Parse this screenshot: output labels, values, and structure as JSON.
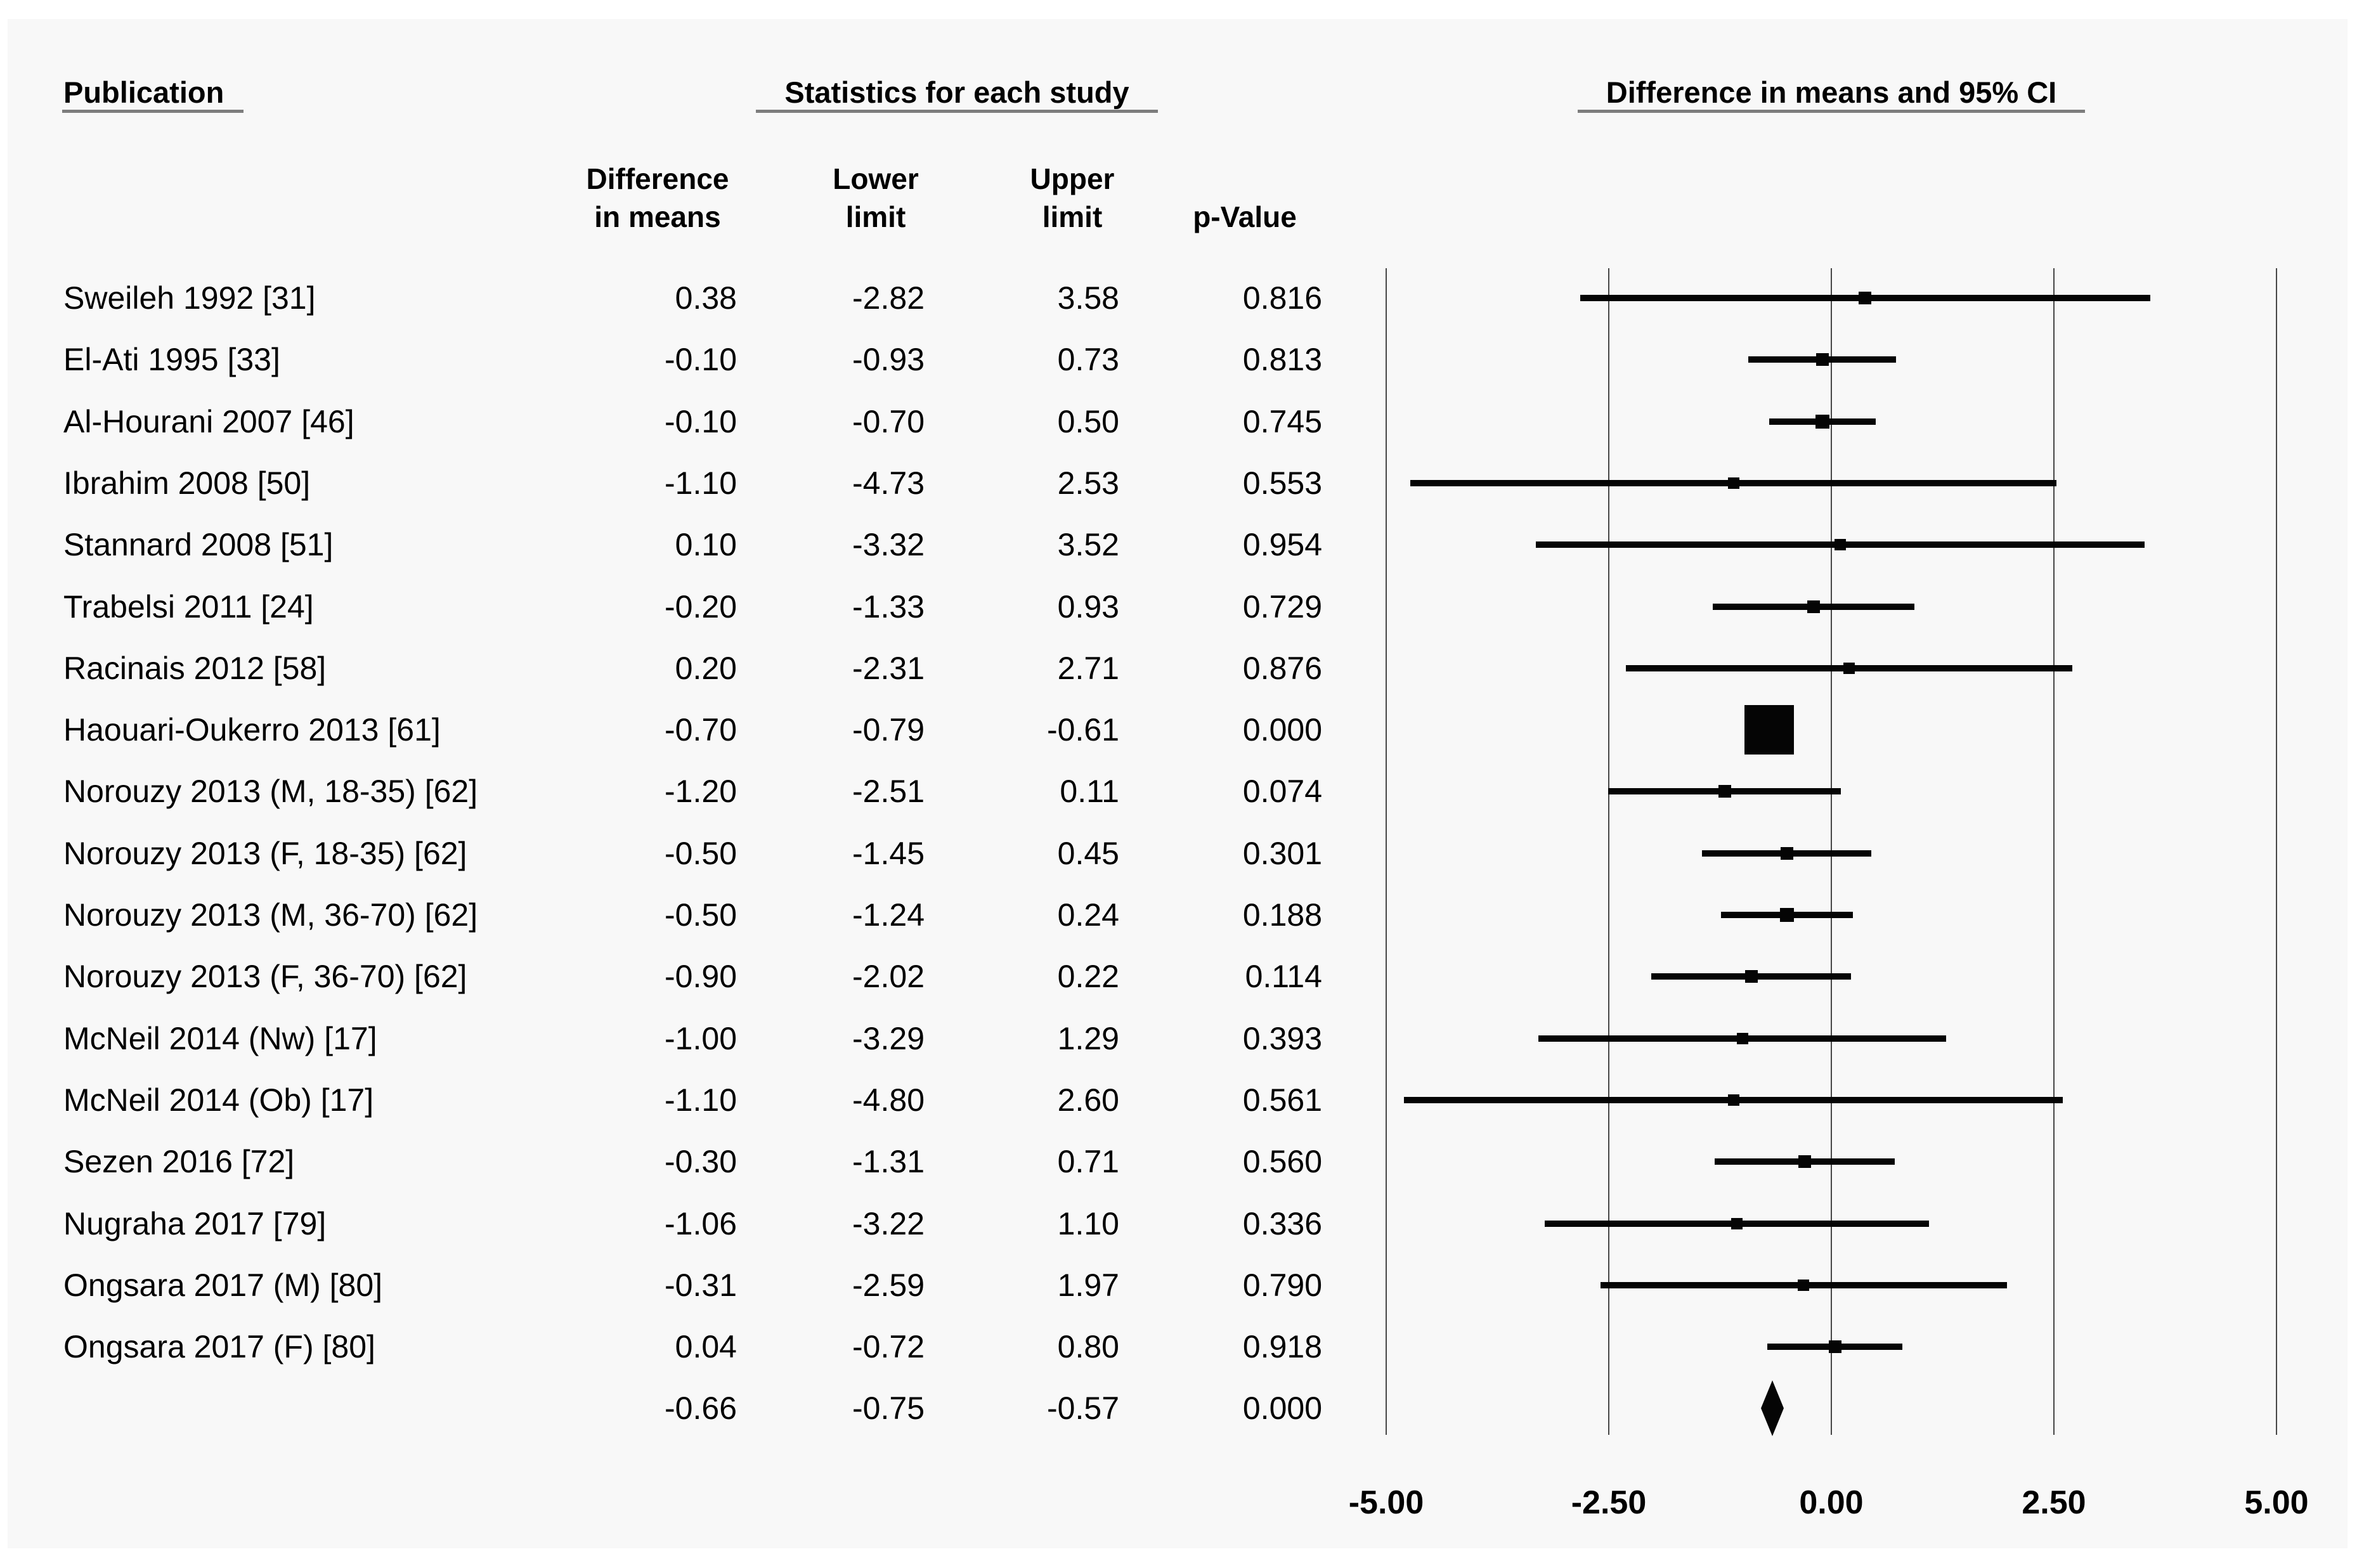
{
  "header": {
    "publication": "Publication",
    "statistics": "Statistics for each study",
    "plot": "Difference in means and 95% CI",
    "col_diff": "Difference\nin means",
    "col_lower": "Lower\nlimit",
    "col_upper": "Upper\nlimit",
    "col_pvalue": "p-Value"
  },
  "chart_data": {
    "type": "forest",
    "title": "Difference in means and 95% CI",
    "xlim": [
      -5.0,
      5.0
    ],
    "axis": {
      "ticks": [
        {
          "value": -5.0,
          "label": "-5.00"
        },
        {
          "value": -2.5,
          "label": "-2.50"
        },
        {
          "value": 0.0,
          "label": "0.00"
        },
        {
          "value": 2.5,
          "label": "2.50"
        },
        {
          "value": 5.0,
          "label": "5.00"
        }
      ],
      "grid": true
    },
    "columns": [
      "Difference in means",
      "Lower limit",
      "Upper limit",
      "p-Value"
    ],
    "studies": [
      {
        "label": "Sweileh 1992 [31]",
        "diff": "0.38",
        "lower": "-2.82",
        "upper": "3.58",
        "p": "0.816",
        "marker_size": 20
      },
      {
        "label": "El-Ati 1995 [33]",
        "diff": "-0.10",
        "lower": "-0.93",
        "upper": "0.73",
        "p": "0.813",
        "marker_size": 20
      },
      {
        "label": "Al-Hourani 2007 [46]",
        "diff": "-0.10",
        "lower": "-0.70",
        "upper": "0.50",
        "p": "0.745",
        "marker_size": 22
      },
      {
        "label": "Ibrahim 2008 [50]",
        "diff": "-1.10",
        "lower": "-4.73",
        "upper": "2.53",
        "p": "0.553",
        "marker_size": 18
      },
      {
        "label": "Stannard 2008 [51]",
        "diff": "0.10",
        "lower": "-3.32",
        "upper": "3.52",
        "p": "0.954",
        "marker_size": 18
      },
      {
        "label": "Trabelsi 2011 [24]",
        "diff": "-0.20",
        "lower": "-1.33",
        "upper": "0.93",
        "p": "0.729",
        "marker_size": 20
      },
      {
        "label": "Racinais 2012 [58]",
        "diff": "0.20",
        "lower": "-2.31",
        "upper": "2.71",
        "p": "0.876",
        "marker_size": 18
      },
      {
        "label": "Haouari-Oukerro 2013 [61]",
        "diff": "-0.70",
        "lower": "-0.79",
        "upper": "-0.61",
        "p": "0.000",
        "marker_size": 78
      },
      {
        "label": "Norouzy 2013 (M, 18-35) [62]",
        "diff": "-1.20",
        "lower": "-2.51",
        "upper": "0.11",
        "p": "0.074",
        "marker_size": 20
      },
      {
        "label": "Norouzy 2013 (F, 18-35) [62]",
        "diff": "-0.50",
        "lower": "-1.45",
        "upper": "0.45",
        "p": "0.301",
        "marker_size": 20
      },
      {
        "label": "Norouzy 2013 (M, 36-70) [62]",
        "diff": "-0.50",
        "lower": "-1.24",
        "upper": "0.24",
        "p": "0.188",
        "marker_size": 22
      },
      {
        "label": "Norouzy 2013 (F, 36-70) [62]",
        "diff": "-0.90",
        "lower": "-2.02",
        "upper": "0.22",
        "p": "0.114",
        "marker_size": 20
      },
      {
        "label": "McNeil 2014 (Nw) [17]",
        "diff": "-1.00",
        "lower": "-3.29",
        "upper": "1.29",
        "p": "0.393",
        "marker_size": 18
      },
      {
        "label": "McNeil 2014 (Ob) [17]",
        "diff": "-1.10",
        "lower": "-4.80",
        "upper": "2.60",
        "p": "0.561",
        "marker_size": 18
      },
      {
        "label": "Sezen 2016 [72]",
        "diff": "-0.30",
        "lower": "-1.31",
        "upper": "0.71",
        "p": "0.560",
        "marker_size": 20
      },
      {
        "label": "Nugraha 2017 [79]",
        "diff": "-1.06",
        "lower": "-3.22",
        "upper": "1.10",
        "p": "0.336",
        "marker_size": 18
      },
      {
        "label": "Ongsara 2017 (M) [80]",
        "diff": "-0.31",
        "lower": "-2.59",
        "upper": "1.97",
        "p": "0.790",
        "marker_size": 18
      },
      {
        "label": "Ongsara 2017 (F) [80]",
        "diff": "0.04",
        "lower": "-0.72",
        "upper": "0.80",
        "p": "0.918",
        "marker_size": 20
      }
    ],
    "pooled": {
      "label": "",
      "diff": "-0.66",
      "lower": "-0.75",
      "upper": "-0.57",
      "p": "0.000"
    }
  },
  "colors": {
    "panel_bg": "#f8f8f8",
    "page_bg": "#ffffff",
    "ink": "#050505",
    "gridline": "#474747",
    "underline": "#7d7d7d"
  }
}
